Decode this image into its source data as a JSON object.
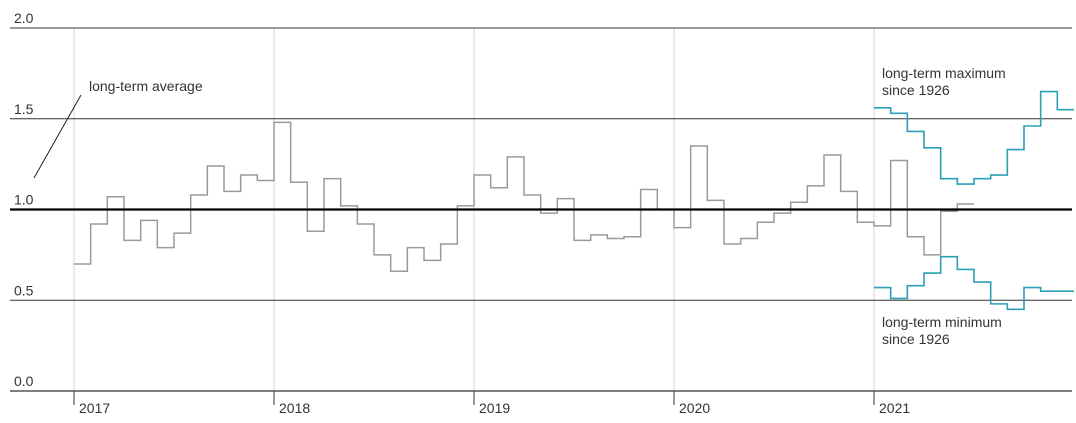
{
  "chart_data": {
    "type": "line",
    "title": "",
    "xlabel": "",
    "ylabel": "",
    "ylim": [
      0.0,
      2.0
    ],
    "yticks": [
      "0.0",
      "0.5",
      "1.0",
      "1.5",
      "2.0"
    ],
    "xticks": [
      "2017",
      "2018",
      "2019",
      "2020",
      "2021"
    ],
    "step": true,
    "grid": "vertical lines at year starts; horizontal lines at 0.5 and 1.5",
    "series": [
      {
        "color": "#9a9a9a",
        "values": [
          0.7,
          0.92,
          1.07,
          0.83,
          0.94,
          0.79,
          0.87,
          1.08,
          1.24,
          1.1,
          1.19,
          1.16,
          1.48,
          1.15,
          0.88,
          1.17,
          1.02,
          0.92,
          0.75,
          0.66,
          0.79,
          0.72,
          0.81,
          1.02,
          1.19,
          1.12,
          1.29,
          1.08,
          0.98,
          1.06,
          0.83,
          0.86,
          0.84,
          0.85,
          1.11,
          1.0,
          0.9,
          1.35,
          1.05,
          0.81,
          0.84,
          0.93,
          0.98,
          1.04,
          1.13,
          1.3,
          1.1,
          0.93,
          0.91,
          1.27,
          0.85,
          0.75,
          0.99,
          1.03
        ]
      },
      {
        "color": "#2a9fb5",
        "values": [
          1.56,
          1.53,
          1.43,
          1.34,
          1.17,
          1.14,
          1.17,
          1.19,
          1.33,
          1.46,
          1.65,
          1.55
        ]
      },
      {
        "color": "#2a9fb5",
        "values": [
          0.57,
          0.51,
          0.58,
          0.65,
          0.74,
          0.67,
          0.6,
          0.48,
          0.45,
          0.57,
          0.55,
          0.55
        ]
      }
    ],
    "reference_line": {
      "value": 1.0,
      "label": "long-term average"
    },
    "annotations": [
      {
        "label_lines": [
          "long-term maximum",
          "since 1926"
        ]
      },
      {
        "label_lines": [
          "long-term minimum",
          "since 1926"
        ]
      }
    ]
  }
}
